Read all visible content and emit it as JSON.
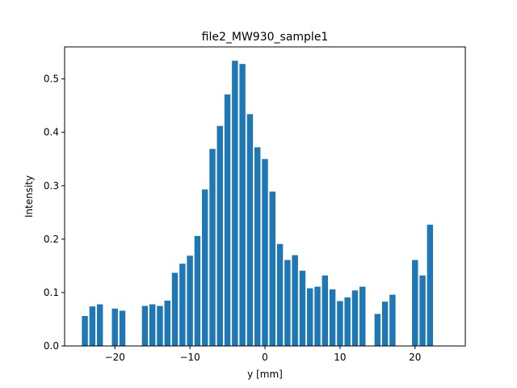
{
  "chart_data": {
    "type": "bar",
    "title": "file2_MW930_sample1",
    "xlabel": "y [mm]",
    "ylabel": "Intensity",
    "xlim": [
      -26.7,
      26.7
    ],
    "ylim": [
      0.0,
      0.56
    ],
    "xticks": [
      -20,
      -10,
      0,
      10,
      20
    ],
    "xtick_labels": [
      "−20",
      "−10",
      "0",
      "10",
      "20"
    ],
    "yticks": [
      0.0,
      0.1,
      0.2,
      0.3,
      0.4,
      0.5
    ],
    "ytick_labels": [
      "0.0",
      "0.1",
      "0.2",
      "0.3",
      "0.4",
      "0.5"
    ],
    "grid": false,
    "bar_color": "#1f77b4",
    "bar_width": 0.8,
    "x": [
      -24,
      -23,
      -22,
      -20,
      -19,
      -16,
      -15,
      -14,
      -13,
      -12,
      -11,
      -10,
      -9,
      -8,
      -7,
      -6,
      -5,
      -4,
      -3,
      -2,
      -1,
      0,
      1,
      2,
      3,
      4,
      5,
      6,
      7,
      8,
      9,
      10,
      11,
      12,
      13,
      14,
      15,
      16,
      17,
      18,
      19,
      20,
      21,
      22,
      23,
      24
    ],
    "values": [
      0.056,
      0.074,
      0.078,
      0.07,
      0.066,
      0.075,
      0.078,
      0.075,
      0.085,
      0.137,
      0.154,
      0.169,
      0.206,
      0.293,
      0.369,
      0.412,
      0.471,
      0.534,
      0.528,
      0.434,
      0.372,
      0.35,
      0.289,
      0.191,
      0.161,
      0.17,
      0.141,
      0.108,
      0.111,
      0.132,
      0.106,
      0.084,
      0.091,
      0.104,
      0.111,
      0,
      0.06,
      0.083,
      0.096,
      0,
      0,
      0.161,
      0.132,
      0.227,
      0,
      0
    ]
  }
}
